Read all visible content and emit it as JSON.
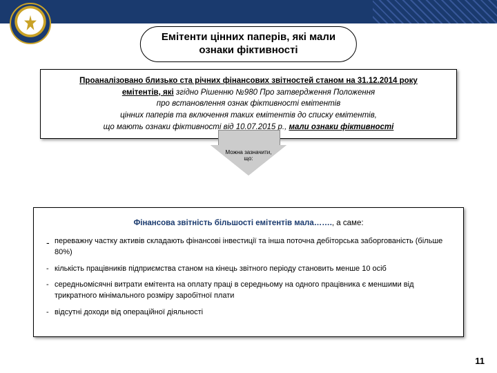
{
  "header": {
    "banner_color": "#1a3a6e",
    "emblem_accent": "#c9a227"
  },
  "title": {
    "line1": "Емітенти цінних паперів, які мали",
    "line2": "ознаки фіктивності"
  },
  "box1": {
    "l1a": "Проаналізовано близько ста річних фінансових звітностей станом на 31.12.2014 року",
    "l1b": "емітентів, які",
    "l2": " згідно Рішенню №980 Про затвердження Положення",
    "l3": "про встановлення ознак фіктивності емітентів",
    "l4": "цінних паперів та включення таких емітентів до списку емітентів,",
    "l5a": "що мають ознаки фіктивності від 10.07.2015 р., ",
    "l5b": "мали ознаки фіктивності"
  },
  "arrow": {
    "label1": "Можна зазначити,",
    "label2": "що:"
  },
  "box2": {
    "lead_bold": "Фінансова звітність більшості емітентів мала…….",
    "lead_rest": ", а саме:",
    "items": {
      "i1": "переважну частку активів складають фінансові інвестиції та інша поточна дебіторська заборгованість (більше 80%)",
      "i2": "кількість працівників підприємства станом на кінець звітного періоду становить менше 10 осіб",
      "i3": "середньомісячні витрати емітента на оплату праці в середньому на одного працівника є меншими від трикратного мінімального розміру заробітної плати",
      "i4": "відсутні доходи від операційної діяльності"
    }
  },
  "page_number": "11"
}
